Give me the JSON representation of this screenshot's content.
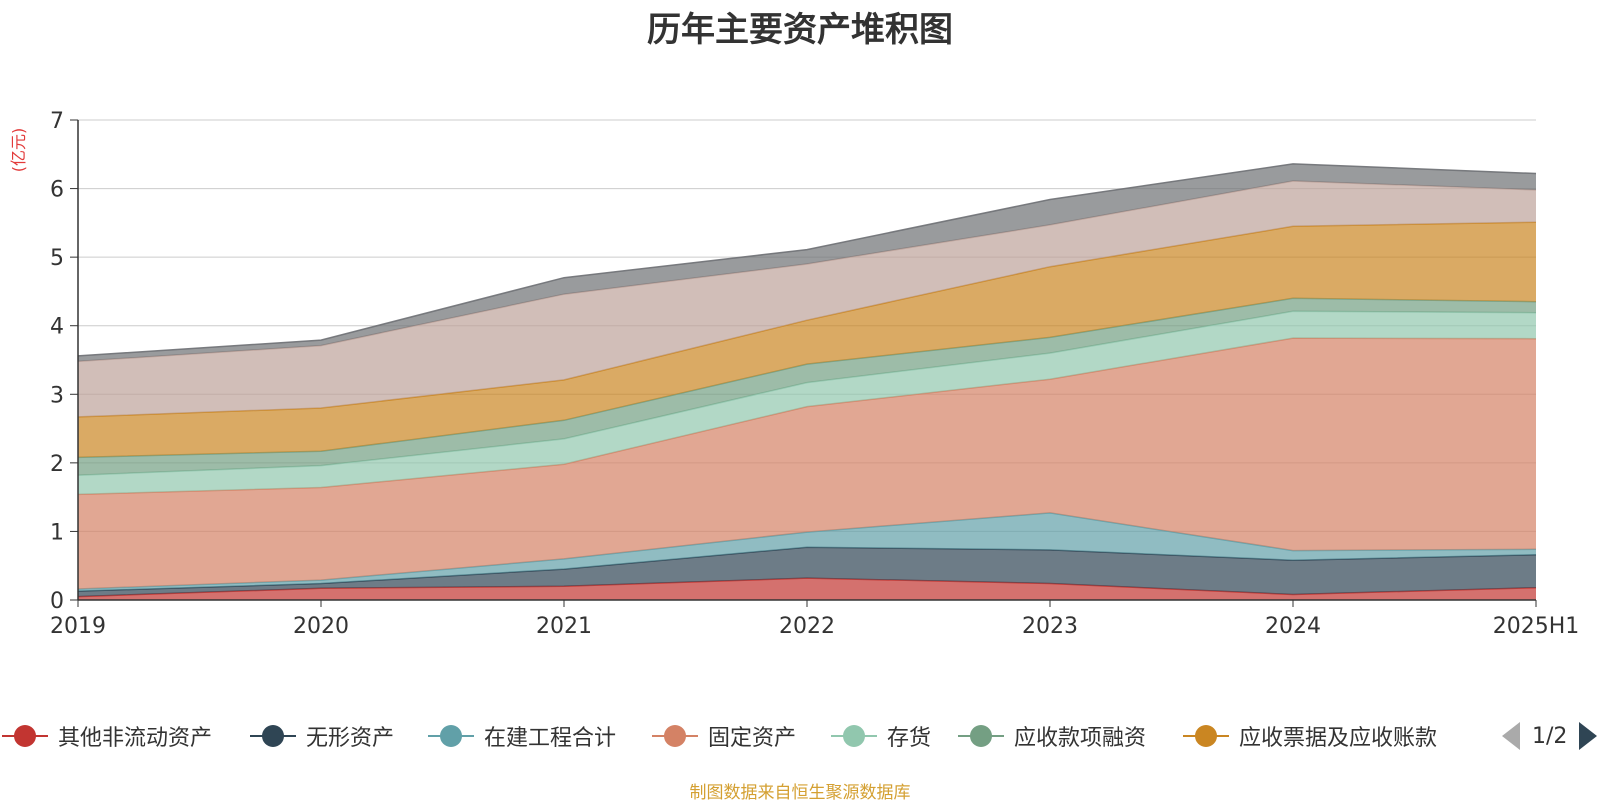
{
  "title": "历年主要资产堆积图",
  "unit_label": "(亿元)",
  "footer": "制图数据来自恒生聚源数据库",
  "legend": {
    "items": [
      {
        "name": "其他非流动资产",
        "color": "#c23531"
      },
      {
        "name": "无形资产",
        "color": "#2f4554"
      },
      {
        "name": "在建工程合计",
        "color": "#61a0a8"
      },
      {
        "name": "固定资产",
        "color": "#d48265"
      },
      {
        "name": "存货",
        "color": "#91c7ae"
      },
      {
        "name": "应收款项融资",
        "color": "#749f83"
      },
      {
        "name": "应收票据及应收账款",
        "color": "#ca8622"
      }
    ],
    "page": "1/2"
  },
  "chart_data": {
    "type": "area",
    "stacked": true,
    "title": "历年主要资产堆积图",
    "ylabel": "(亿元)",
    "ylim": [
      0,
      7
    ],
    "yticks": [
      0,
      1,
      2,
      3,
      4,
      5,
      6,
      7
    ],
    "grid": true,
    "legend_position": "bottom",
    "categories": [
      "2019",
      "2020",
      "2021",
      "2022",
      "2023",
      "2024",
      "2025H1"
    ],
    "series": [
      {
        "name": "其他非流动资产",
        "color": "#c23531",
        "values": [
          0.05,
          0.17,
          0.2,
          0.32,
          0.24,
          0.08,
          0.18
        ]
      },
      {
        "name": "无形资产",
        "color": "#2f4554",
        "values": [
          0.08,
          0.07,
          0.25,
          0.45,
          0.49,
          0.5,
          0.48
        ]
      },
      {
        "name": "在建工程合计",
        "color": "#61a0a8",
        "values": [
          0.03,
          0.05,
          0.15,
          0.22,
          0.54,
          0.14,
          0.08
        ]
      },
      {
        "name": "固定资产",
        "color": "#d48265",
        "values": [
          1.38,
          1.35,
          1.38,
          1.83,
          1.95,
          3.1,
          3.07
        ]
      },
      {
        "name": "存货",
        "color": "#91c7ae",
        "values": [
          0.28,
          0.32,
          0.37,
          0.35,
          0.38,
          0.39,
          0.38
        ]
      },
      {
        "name": "应收款项融资",
        "color": "#749f83",
        "values": [
          0.26,
          0.21,
          0.27,
          0.27,
          0.23,
          0.19,
          0.16
        ]
      },
      {
        "name": "应收票据及应收账款",
        "color": "#ca8622",
        "values": [
          0.59,
          0.63,
          0.59,
          0.64,
          1.03,
          1.05,
          1.16
        ]
      },
      {
        "name": "",
        "color": "#bda29a",
        "values": [
          0.81,
          0.91,
          1.25,
          0.82,
          0.61,
          0.66,
          0.47
        ]
      },
      {
        "name": "",
        "color": "#6e7074",
        "values": [
          0.08,
          0.08,
          0.24,
          0.21,
          0.37,
          0.25,
          0.24
        ]
      }
    ]
  }
}
